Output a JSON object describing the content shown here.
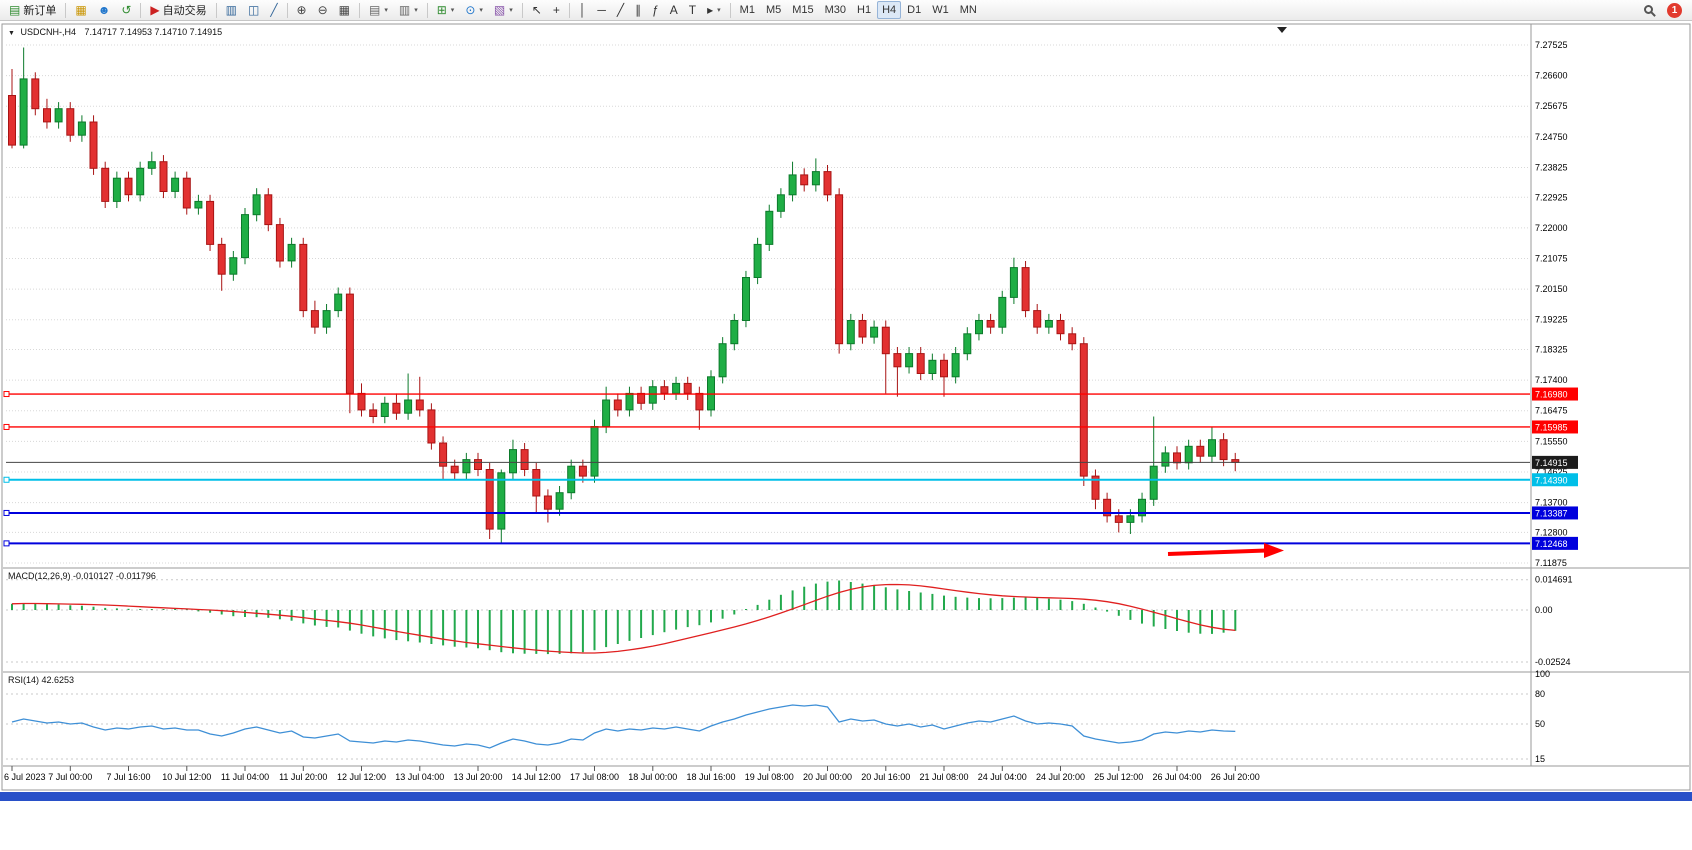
{
  "toolbar": {
    "groups": [
      {
        "items": [
          {
            "name": "new-order-button",
            "label": "新订单",
            "glyph": "▤",
            "color": "#2e8b2e"
          }
        ]
      },
      {
        "items": [
          {
            "name": "new-chart-button",
            "glyph": "▦",
            "color": "#c99400"
          },
          {
            "name": "profiles-button",
            "glyph": "☻",
            "color": "#2277cc"
          },
          {
            "name": "data-refresh-button",
            "glyph": "↺",
            "color": "#2e8b2e"
          }
        ]
      },
      {
        "items": [
          {
            "name": "auto-trading-button",
            "label": "自动交易",
            "glyph": "▶",
            "color": "#cc2222"
          }
        ]
      },
      {
        "items": [
          {
            "name": "bar-chart-button",
            "glyph": "▥",
            "color": "#336699"
          },
          {
            "name": "candlestick-chart-button",
            "glyph": "◫",
            "color": "#336699"
          },
          {
            "name": "line-chart-button",
            "glyph": "╱",
            "color": "#336699"
          }
        ]
      },
      {
        "items": [
          {
            "name": "zoom-in-button",
            "glyph": "⊕",
            "color": "#444444"
          },
          {
            "name": "zoom-out-button",
            "glyph": "⊖",
            "color": "#444444"
          },
          {
            "name": "tile-windows-button",
            "glyph": "▦",
            "color": "#444444"
          }
        ]
      },
      {
        "items": [
          {
            "name": "arrange-windows-button",
            "glyph": "▤",
            "color": "#666666",
            "dropdown": true
          },
          {
            "name": "auto-arrange-button",
            "glyph": "▥",
            "color": "#666666",
            "dropdown": true
          }
        ]
      },
      {
        "items": [
          {
            "name": "add-indicator-button",
            "glyph": "⊞",
            "color": "#2e8b2e",
            "dropdown": true
          },
          {
            "name": "period-button",
            "glyph": "⊙",
            "color": "#2277cc",
            "dropdown": true
          },
          {
            "name": "template-button",
            "glyph": "▧",
            "color": "#8855aa",
            "dropdown": true
          }
        ]
      },
      {
        "items": [
          {
            "name": "cursor-button",
            "glyph": "↖",
            "color": "#333333"
          },
          {
            "name": "crosshair-button",
            "glyph": "+",
            "color": "#333333"
          }
        ]
      },
      {
        "items": [
          {
            "name": "vertical-line-button",
            "glyph": "│",
            "color": "#333333"
          },
          {
            "name": "horizontal-line-button",
            "glyph": "─",
            "color": "#333333"
          },
          {
            "name": "trendline-button",
            "glyph": "╱",
            "color": "#333333"
          },
          {
            "name": "channel-button",
            "glyph": "∥",
            "color": "#333333"
          },
          {
            "name": "fibonacci-button",
            "glyph": "ƒ",
            "color": "#333333"
          },
          {
            "name": "text-button",
            "glyph": "A",
            "color": "#333333"
          },
          {
            "name": "label-button",
            "glyph": "T",
            "color": "#333333"
          },
          {
            "name": "arrows-menu-button",
            "glyph": "▸",
            "color": "#333333",
            "dropdown": true
          }
        ]
      },
      {
        "items": [
          {
            "name": "tf-m1-button",
            "label": "M1",
            "tf": true
          },
          {
            "name": "tf-m5-button",
            "label": "M5",
            "tf": true
          },
          {
            "name": "tf-m15-button",
            "label": "M15",
            "tf": true
          },
          {
            "name": "tf-m30-button",
            "label": "M30",
            "tf": true
          },
          {
            "name": "tf-h1-button",
            "label": "H1",
            "tf": true
          },
          {
            "name": "tf-h4-button",
            "label": "H4",
            "tf": true,
            "active": true
          },
          {
            "name": "tf-d1-button",
            "label": "D1",
            "tf": true
          },
          {
            "name": "tf-w1-button",
            "label": "W1",
            "tf": true
          },
          {
            "name": "tf-mn-button",
            "label": "MN",
            "tf": true
          }
        ]
      }
    ],
    "right": [
      {
        "name": "search-button",
        "type": "magnifier"
      },
      {
        "name": "notification-badge",
        "label": "1"
      }
    ]
  },
  "colors": {
    "candle_up": "#1fae45",
    "candle_up_border": "#0c7a2b",
    "candle_down": "#e23131",
    "candle_down_border": "#a81414",
    "macd_hist": "#22a94c",
    "macd_signal": "#e02020",
    "rsi_line": "#3e8fd6",
    "arrow": "#ff0000",
    "bottom_strip": "#2850c8"
  },
  "chart_data": {
    "type": "candlestick",
    "symbol": "USDCNH-",
    "period": "H4",
    "title": {
      "symbol_period": "USDCNH-,H4",
      "ohlc": "7.14717 7.14953 7.14710 7.14915"
    },
    "price_axis": {
      "ticks": [
        7.27525,
        7.266,
        7.25675,
        7.2475,
        7.23825,
        7.22925,
        7.22,
        7.21075,
        7.2015,
        7.19225,
        7.18325,
        7.174,
        7.16475,
        7.1555,
        7.14625,
        7.137,
        7.128,
        7.11875
      ]
    },
    "hlines": [
      {
        "price": 7.1698,
        "color": "#ff0000",
        "width": 1.4,
        "handle": true
      },
      {
        "price": 7.15985,
        "color": "#ff0000",
        "width": 1.4,
        "handle": true
      },
      {
        "price": 7.14915,
        "color": "#444444",
        "box": "#1c1c1c",
        "width": 1,
        "handle": false
      },
      {
        "price": 7.1439,
        "color": "#00bfe8",
        "width": 2,
        "handle": true
      },
      {
        "price": 7.13387,
        "color": "#0000dd",
        "width": 2,
        "handle": true
      },
      {
        "price": 7.12468,
        "color": "#0000dd",
        "width": 2,
        "handle": true
      }
    ],
    "candles": [
      [
        7.26,
        7.268,
        7.244,
        7.245
      ],
      [
        7.245,
        7.2745,
        7.244,
        7.265
      ],
      [
        7.265,
        7.267,
        7.254,
        7.256
      ],
      [
        7.256,
        7.259,
        7.25,
        7.252
      ],
      [
        7.252,
        7.258,
        7.25,
        7.256
      ],
      [
        7.256,
        7.258,
        7.246,
        7.248
      ],
      [
        7.248,
        7.254,
        7.246,
        7.252
      ],
      [
        7.252,
        7.254,
        7.236,
        7.238
      ],
      [
        7.238,
        7.24,
        7.226,
        7.228
      ],
      [
        7.228,
        7.237,
        7.226,
        7.235
      ],
      [
        7.235,
        7.237,
        7.228,
        7.23
      ],
      [
        7.23,
        7.24,
        7.228,
        7.238
      ],
      [
        7.238,
        7.243,
        7.236,
        7.24
      ],
      [
        7.24,
        7.242,
        7.229,
        7.231
      ],
      [
        7.231,
        7.237,
        7.229,
        7.235
      ],
      [
        7.235,
        7.237,
        7.224,
        7.226
      ],
      [
        7.226,
        7.23,
        7.224,
        7.228
      ],
      [
        7.228,
        7.23,
        7.213,
        7.215
      ],
      [
        7.215,
        7.217,
        7.201,
        7.206
      ],
      [
        7.206,
        7.213,
        7.204,
        7.211
      ],
      [
        7.211,
        7.226,
        7.209,
        7.224
      ],
      [
        7.224,
        7.232,
        7.222,
        7.23
      ],
      [
        7.23,
        7.232,
        7.219,
        7.221
      ],
      [
        7.221,
        7.223,
        7.208,
        7.21
      ],
      [
        7.21,
        7.217,
        7.208,
        7.215
      ],
      [
        7.215,
        7.217,
        7.193,
        7.195
      ],
      [
        7.195,
        7.198,
        7.188,
        7.19
      ],
      [
        7.19,
        7.197,
        7.188,
        7.195
      ],
      [
        7.195,
        7.202,
        7.193,
        7.2
      ],
      [
        7.2,
        7.202,
        7.164,
        7.17
      ],
      [
        7.17,
        7.173,
        7.163,
        7.165
      ],
      [
        7.165,
        7.167,
        7.161,
        7.163
      ],
      [
        7.163,
        7.169,
        7.161,
        7.167
      ],
      [
        7.167,
        7.17,
        7.162,
        7.164
      ],
      [
        7.164,
        7.176,
        7.162,
        7.168
      ],
      [
        7.168,
        7.175,
        7.163,
        7.165
      ],
      [
        7.165,
        7.167,
        7.153,
        7.155
      ],
      [
        7.155,
        7.157,
        7.144,
        7.148
      ],
      [
        7.148,
        7.15,
        7.144,
        7.146
      ],
      [
        7.146,
        7.152,
        7.144,
        7.15
      ],
      [
        7.15,
        7.152,
        7.145,
        7.147
      ],
      [
        7.147,
        7.149,
        7.126,
        7.129
      ],
      [
        7.129,
        7.147,
        7.1245,
        7.146
      ],
      [
        7.146,
        7.156,
        7.144,
        7.153
      ],
      [
        7.153,
        7.155,
        7.145,
        7.147
      ],
      [
        7.147,
        7.149,
        7.134,
        7.139
      ],
      [
        7.139,
        7.141,
        7.131,
        7.135
      ],
      [
        7.135,
        7.142,
        7.133,
        7.14
      ],
      [
        7.14,
        7.15,
        7.138,
        7.148
      ],
      [
        7.148,
        7.15,
        7.143,
        7.145
      ],
      [
        7.145,
        7.162,
        7.143,
        7.16
      ],
      [
        7.16,
        7.172,
        7.158,
        7.168
      ],
      [
        7.168,
        7.17,
        7.163,
        7.165
      ],
      [
        7.165,
        7.172,
        7.163,
        7.17
      ],
      [
        7.17,
        7.172,
        7.165,
        7.167
      ],
      [
        7.167,
        7.174,
        7.165,
        7.172
      ],
      [
        7.172,
        7.174,
        7.168,
        7.17
      ],
      [
        7.17,
        7.175,
        7.168,
        7.173
      ],
      [
        7.173,
        7.175,
        7.168,
        7.17
      ],
      [
        7.17,
        7.172,
        7.159,
        7.165
      ],
      [
        7.165,
        7.177,
        7.163,
        7.175
      ],
      [
        7.175,
        7.187,
        7.173,
        7.185
      ],
      [
        7.185,
        7.194,
        7.183,
        7.192
      ],
      [
        7.192,
        7.207,
        7.19,
        7.205
      ],
      [
        7.205,
        7.217,
        7.203,
        7.215
      ],
      [
        7.215,
        7.227,
        7.213,
        7.225
      ],
      [
        7.225,
        7.232,
        7.223,
        7.23
      ],
      [
        7.23,
        7.24,
        7.228,
        7.236
      ],
      [
        7.236,
        7.238,
        7.231,
        7.233
      ],
      [
        7.233,
        7.241,
        7.231,
        7.237
      ],
      [
        7.237,
        7.239,
        7.228,
        7.23
      ],
      [
        7.23,
        7.232,
        7.182,
        7.185
      ],
      [
        7.185,
        7.194,
        7.183,
        7.192
      ],
      [
        7.192,
        7.194,
        7.185,
        7.187
      ],
      [
        7.187,
        7.192,
        7.185,
        7.19
      ],
      [
        7.19,
        7.192,
        7.17,
        7.182
      ],
      [
        7.182,
        7.184,
        7.169,
        7.178
      ],
      [
        7.178,
        7.184,
        7.176,
        7.182
      ],
      [
        7.182,
        7.184,
        7.174,
        7.176
      ],
      [
        7.176,
        7.182,
        7.174,
        7.18
      ],
      [
        7.18,
        7.182,
        7.169,
        7.175
      ],
      [
        7.175,
        7.184,
        7.173,
        7.182
      ],
      [
        7.182,
        7.19,
        7.18,
        7.188
      ],
      [
        7.188,
        7.194,
        7.186,
        7.192
      ],
      [
        7.192,
        7.194,
        7.188,
        7.19
      ],
      [
        7.19,
        7.201,
        7.188,
        7.199
      ],
      [
        7.199,
        7.211,
        7.197,
        7.208
      ],
      [
        7.208,
        7.21,
        7.193,
        7.195
      ],
      [
        7.195,
        7.197,
        7.188,
        7.19
      ],
      [
        7.19,
        7.194,
        7.188,
        7.192
      ],
      [
        7.192,
        7.194,
        7.186,
        7.188
      ],
      [
        7.188,
        7.19,
        7.183,
        7.185
      ],
      [
        7.185,
        7.187,
        7.142,
        7.145
      ],
      [
        7.145,
        7.147,
        7.135,
        7.138
      ],
      [
        7.138,
        7.14,
        7.131,
        7.133
      ],
      [
        7.133,
        7.135,
        7.128,
        7.131
      ],
      [
        7.131,
        7.135,
        7.1275,
        7.133
      ],
      [
        7.133,
        7.14,
        7.131,
        7.138
      ],
      [
        7.138,
        7.163,
        7.136,
        7.148
      ],
      [
        7.148,
        7.154,
        7.146,
        7.152
      ],
      [
        7.152,
        7.154,
        7.147,
        7.149
      ],
      [
        7.149,
        7.156,
        7.147,
        7.154
      ],
      [
        7.154,
        7.156,
        7.149,
        7.151
      ],
      [
        7.151,
        7.16,
        7.149,
        7.156
      ],
      [
        7.156,
        7.158,
        7.148,
        7.15
      ],
      [
        7.15,
        7.152,
        7.1465,
        7.14915
      ]
    ],
    "x_axis": {
      "labels": [
        "6 Jul 2023",
        "7 Jul 00:00",
        "7 Jul 16:00",
        "10 Jul 12:00",
        "11 Jul 04:00",
        "11 Jul 20:00",
        "12 Jul 12:00",
        "13 Jul 04:00",
        "13 Jul 20:00",
        "14 Jul 12:00",
        "17 Jul 08:00",
        "18 Jul 00:00",
        "18 Jul 16:00",
        "19 Jul 08:00",
        "20 Jul 00:00",
        "20 Jul 16:00",
        "21 Jul 08:00",
        "24 Jul 04:00",
        "24 Jul 20:00",
        "25 Jul 12:00",
        "26 Jul 04:00",
        "26 Jul 20:00"
      ]
    },
    "macd": {
      "label_full": "MACD(12,26,9) -0.010127 -0.011796",
      "scale": [
        "0.014691",
        "0.00",
        "-0.02524"
      ],
      "scale_values": [
        0.014691,
        0,
        -0.02524
      ],
      "histogram": [
        0.003,
        0.0033,
        0.0031,
        0.0028,
        0.0026,
        0.0023,
        0.0021,
        0.0016,
        0.001,
        0.0008,
        0.0006,
        0.0005,
        0.0004,
        0.0002,
        0.0,
        -0.0004,
        -0.0007,
        -0.0013,
        -0.0022,
        -0.003,
        -0.0034,
        -0.0035,
        -0.0038,
        -0.0045,
        -0.0052,
        -0.0065,
        -0.0075,
        -0.0082,
        -0.0085,
        -0.01,
        -0.0115,
        -0.0128,
        -0.0138,
        -0.0146,
        -0.0152,
        -0.0158,
        -0.0165,
        -0.0172,
        -0.0178,
        -0.0182,
        -0.0186,
        -0.0195,
        -0.0205,
        -0.021,
        -0.0212,
        -0.0213,
        -0.0214,
        -0.0213,
        -0.021,
        -0.0205,
        -0.0195,
        -0.018,
        -0.0165,
        -0.015,
        -0.0136,
        -0.0122,
        -0.0108,
        -0.0095,
        -0.0083,
        -0.0074,
        -0.006,
        -0.0042,
        -0.0022,
        0.0,
        0.0025,
        0.005,
        0.0074,
        0.0095,
        0.0113,
        0.0128,
        0.0138,
        0.0143,
        0.0136,
        0.0128,
        0.012,
        0.011,
        0.01,
        0.0092,
        0.0085,
        0.0078,
        0.007,
        0.0064,
        0.006,
        0.0058,
        0.0057,
        0.0058,
        0.006,
        0.0061,
        0.0059,
        0.0055,
        0.005,
        0.0043,
        0.003,
        0.0012,
        -0.0008,
        -0.0028,
        -0.0048,
        -0.0066,
        -0.008,
        -0.0092,
        -0.0102,
        -0.011,
        -0.0115,
        -0.0116,
        -0.011,
        -0.0101
      ]
    },
    "rsi": {
      "label_full": "RSI(14) 42.6253",
      "scale": [
        "100",
        "80",
        "50",
        "15"
      ],
      "scale_values": [
        100,
        80,
        50,
        15
      ],
      "levels": [
        80,
        50,
        15
      ],
      "values": [
        52,
        55,
        53,
        51,
        52,
        50,
        51,
        47,
        44,
        46,
        45,
        47,
        48,
        45,
        46,
        44,
        44,
        40,
        38,
        41,
        45,
        47,
        44,
        41,
        43,
        37,
        36,
        38,
        40,
        33,
        32,
        31,
        33,
        32,
        34,
        33,
        31,
        29,
        28,
        30,
        29,
        26,
        31,
        35,
        33,
        30,
        29,
        31,
        35,
        34,
        41,
        45,
        43,
        45,
        44,
        46,
        45,
        47,
        45,
        43,
        48,
        52,
        55,
        59,
        62,
        65,
        67,
        69,
        68,
        69,
        67,
        52,
        55,
        53,
        54,
        50,
        48,
        50,
        47,
        49,
        45,
        48,
        51,
        53,
        52,
        55,
        58,
        53,
        50,
        51,
        50,
        48,
        38,
        35,
        33,
        31,
        32,
        34,
        40,
        42,
        41,
        43,
        42,
        44,
        43,
        42.6
      ]
    }
  }
}
